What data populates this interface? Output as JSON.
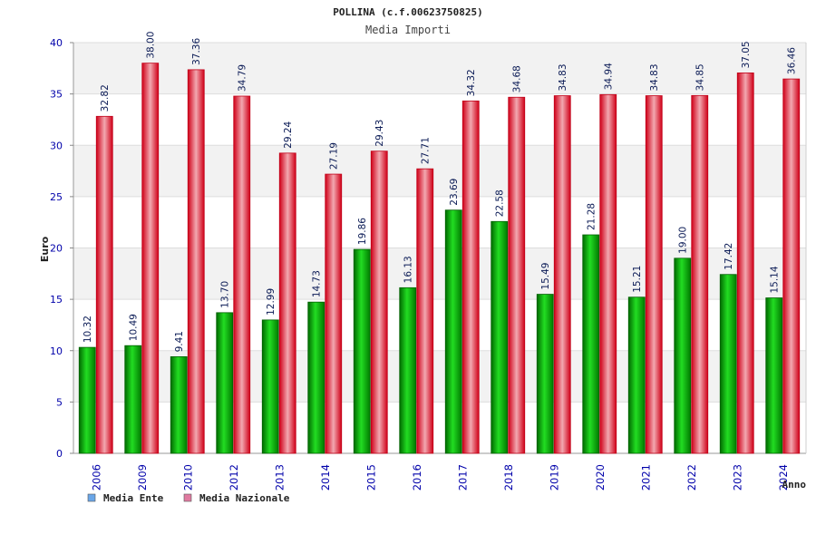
{
  "chart_data": {
    "type": "bar",
    "title": "POLLINA (c.f.00623750825)",
    "subtitle": "Media Importi",
    "xlabel": "Anno",
    "ylabel": "Euro",
    "ylim": [
      0,
      40
    ],
    "yticks": [
      0,
      5,
      10,
      15,
      20,
      25,
      30,
      35,
      40
    ],
    "categories": [
      "2006",
      "2009",
      "2010",
      "2012",
      "2013",
      "2014",
      "2015",
      "2016",
      "2017",
      "2018",
      "2019",
      "2020",
      "2021",
      "2022",
      "2023",
      "2024"
    ],
    "series": [
      {
        "name": "Media Ente",
        "color": "#00b400",
        "legend_color": "#6aa6e8",
        "values": [
          10.32,
          10.49,
          9.41,
          13.7,
          12.99,
          14.73,
          19.86,
          16.13,
          23.69,
          22.58,
          15.49,
          21.28,
          15.21,
          19.0,
          17.42,
          15.14
        ],
        "labels": [
          "10.32",
          "10.49",
          "9.41",
          "13.70",
          "12.99",
          "14.73",
          "19.86",
          "16.13",
          "23.69",
          "22.58",
          "15.49",
          "21.28",
          "15.21",
          "19.00",
          "17.42",
          "15.14"
        ]
      },
      {
        "name": "Media Nazionale",
        "color": "#e8182a",
        "legend_color": "#e07aa0",
        "values": [
          32.82,
          38.0,
          37.36,
          34.79,
          29.24,
          27.19,
          29.43,
          27.71,
          34.32,
          34.68,
          34.83,
          34.94,
          34.83,
          34.85,
          37.05,
          36.46
        ],
        "labels": [
          "32.82",
          "38.00",
          "37.36",
          "34.79",
          "29.24",
          "27.19",
          "29.43",
          "27.71",
          "34.32",
          "34.68",
          "34.83",
          "34.94",
          "34.83",
          "34.85",
          "37.05",
          "36.46"
        ]
      }
    ],
    "legend": "bottom-left",
    "grid": true
  }
}
